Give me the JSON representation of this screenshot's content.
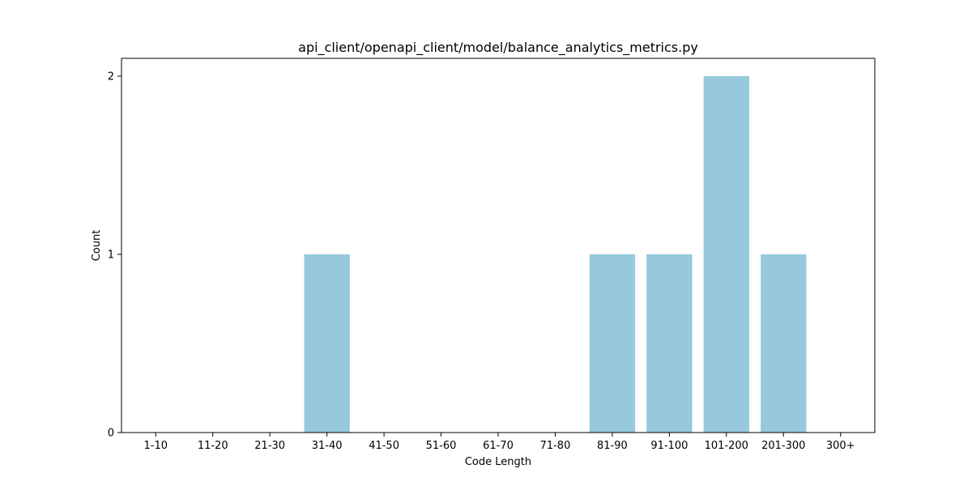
{
  "chart_data": {
    "type": "bar",
    "title": "api_client/openapi_client/model/balance_analytics_metrics.py",
    "xlabel": "Code Length",
    "ylabel": "Count",
    "categories": [
      "1-10",
      "11-20",
      "21-30",
      "31-40",
      "41-50",
      "51-60",
      "61-70",
      "71-80",
      "81-90",
      "91-100",
      "101-200",
      "201-300",
      "300+"
    ],
    "values": [
      0,
      0,
      0,
      1,
      0,
      0,
      0,
      0,
      1,
      1,
      2,
      1,
      0
    ],
    "ylim": [
      0,
      2.1
    ],
    "yticks": [
      "0",
      "1",
      "2"
    ],
    "grid": false,
    "bar_color": "#96c9dc"
  }
}
